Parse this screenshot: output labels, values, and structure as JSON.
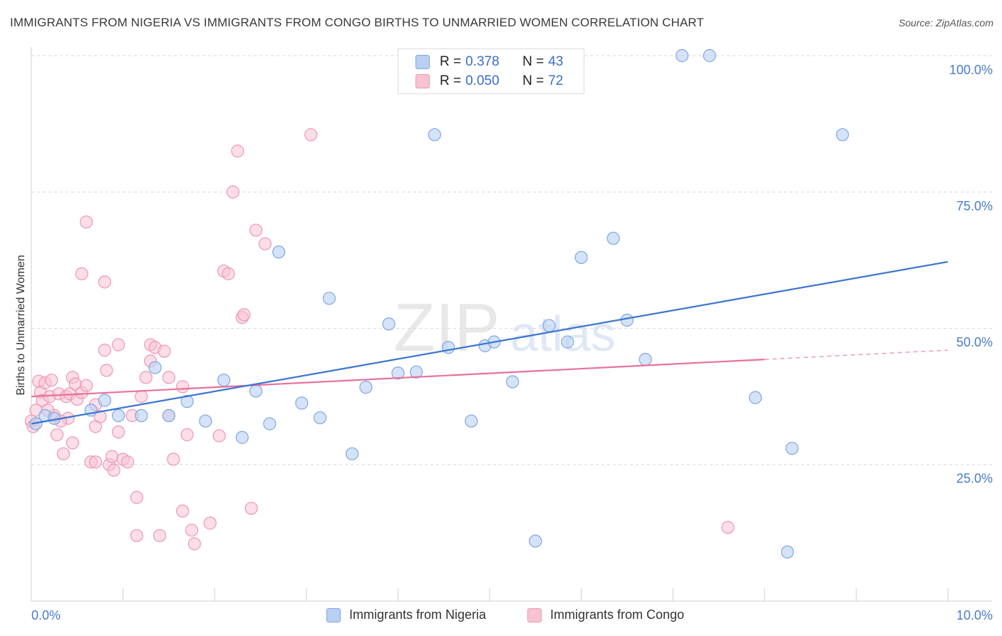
{
  "title": "IMMIGRANTS FROM NIGERIA VS IMMIGRANTS FROM CONGO BIRTHS TO UNMARRIED WOMEN CORRELATION CHART",
  "source": "Source: ZipAtlas.com",
  "watermark": {
    "zip": "ZIP",
    "atlas": "atlas"
  },
  "legend_top": [
    {
      "r_label": "R = ",
      "r_value": "0.378",
      "n_label": "N = ",
      "n_value": "43"
    },
    {
      "r_label": "R = ",
      "r_value": "0.050",
      "n_label": "N = ",
      "n_value": "72"
    }
  ],
  "legend_bottom": [
    "Immigrants from Nigeria",
    "Immigrants from Congo"
  ],
  "colors": {
    "nigeria_fill": "#b9d0f3",
    "nigeria_stroke": "#7fa6e3",
    "nigeria_line": "#3a76d0",
    "congo_fill": "#f7c3d3",
    "congo_stroke": "#ee97b3",
    "congo_line": "#e8719b",
    "grid": "#d9d9d9",
    "axis_label": "#4a7cc9"
  },
  "chart_data": {
    "type": "scatter",
    "title": "IMMIGRANTS FROM NIGERIA VS IMMIGRANTS FROM CONGO BIRTHS TO UNMARRIED WOMEN CORRELATION CHART",
    "xlabel": "",
    "ylabel": "Births to Unmarried Women",
    "xlim": [
      0,
      10
    ],
    "ylim": [
      0,
      100
    ],
    "x_tick_labels": [
      "0.0%",
      "10.0%"
    ],
    "y_tick_labels": [
      "100.0%",
      "75.0%",
      "50.0%",
      "25.0%"
    ],
    "y_gridlines": [
      25,
      50,
      75,
      100
    ],
    "series": [
      {
        "name": "Immigrants from Nigeria",
        "R": 0.378,
        "N": 43,
        "trend": {
          "x": [
            0.0,
            10.0
          ],
          "y": [
            32.5,
            62.2
          ]
        },
        "points": [
          [
            0.05,
            32.5
          ],
          [
            0.15,
            34.0
          ],
          [
            0.25,
            33.5
          ],
          [
            0.65,
            35.0
          ],
          [
            0.8,
            36.8
          ],
          [
            0.95,
            34.0
          ],
          [
            1.2,
            34.0
          ],
          [
            1.35,
            42.8
          ],
          [
            1.5,
            34.0
          ],
          [
            1.7,
            36.6
          ],
          [
            1.9,
            33.0
          ],
          [
            2.1,
            40.5
          ],
          [
            2.3,
            30.0
          ],
          [
            2.45,
            38.5
          ],
          [
            2.6,
            32.5
          ],
          [
            2.7,
            64.0
          ],
          [
            2.95,
            36.3
          ],
          [
            3.15,
            33.6
          ],
          [
            3.25,
            55.5
          ],
          [
            3.5,
            27.0
          ],
          [
            3.65,
            39.2
          ],
          [
            3.9,
            50.8
          ],
          [
            4.0,
            41.8
          ],
          [
            4.2,
            42.0
          ],
          [
            4.4,
            85.5
          ],
          [
            4.55,
            46.5
          ],
          [
            4.8,
            33.0
          ],
          [
            4.95,
            46.8
          ],
          [
            5.05,
            47.5
          ],
          [
            5.25,
            40.2
          ],
          [
            5.5,
            11.0
          ],
          [
            5.65,
            50.5
          ],
          [
            5.85,
            47.5
          ],
          [
            6.0,
            63.0
          ],
          [
            6.35,
            66.5
          ],
          [
            6.5,
            51.5
          ],
          [
            6.7,
            44.3
          ],
          [
            7.1,
            100.0
          ],
          [
            7.4,
            100.0
          ],
          [
            7.9,
            37.3
          ],
          [
            8.3,
            28.0
          ],
          [
            8.25,
            9.0
          ],
          [
            8.85,
            85.5
          ]
        ]
      },
      {
        "name": "Immigrants from Congo",
        "R": 0.05,
        "N": 72,
        "trend": {
          "x": [
            0.0,
            8.0
          ],
          "y": [
            37.5,
            44.3
          ]
        },
        "trend_extension": {
          "x": [
            8.0,
            10.0
          ],
          "y": [
            44.3,
            46.0
          ]
        },
        "points": [
          [
            0.0,
            33.0
          ],
          [
            0.05,
            35.0
          ],
          [
            0.08,
            40.3
          ],
          [
            0.1,
            38.3
          ],
          [
            0.12,
            36.8
          ],
          [
            0.15,
            40.0
          ],
          [
            0.2,
            37.5
          ],
          [
            0.22,
            40.5
          ],
          [
            0.25,
            34.0
          ],
          [
            0.28,
            30.5
          ],
          [
            0.3,
            38.0
          ],
          [
            0.35,
            27.0
          ],
          [
            0.38,
            37.5
          ],
          [
            0.4,
            33.5
          ],
          [
            0.42,
            38.0
          ],
          [
            0.45,
            29.0
          ],
          [
            0.45,
            41.0
          ],
          [
            0.48,
            39.8
          ],
          [
            0.5,
            37.0
          ],
          [
            0.55,
            38.2
          ],
          [
            0.6,
            39.5
          ],
          [
            0.65,
            25.5
          ],
          [
            0.7,
            25.5
          ],
          [
            0.7,
            32.0
          ],
          [
            0.7,
            36.0
          ],
          [
            0.75,
            33.8
          ],
          [
            0.8,
            46.0
          ],
          [
            0.82,
            42.3
          ],
          [
            0.85,
            25.0
          ],
          [
            0.88,
            26.5
          ],
          [
            0.9,
            24.0
          ],
          [
            0.95,
            31.0
          ],
          [
            0.95,
            47.0
          ],
          [
            1.0,
            26.0
          ],
          [
            1.05,
            25.5
          ],
          [
            1.1,
            34.0
          ],
          [
            1.15,
            19.0
          ],
          [
            1.15,
            12.0
          ],
          [
            1.2,
            37.5
          ],
          [
            1.25,
            41.0
          ],
          [
            1.3,
            47.0
          ],
          [
            1.3,
            44.0
          ],
          [
            1.35,
            46.5
          ],
          [
            1.4,
            12.0
          ],
          [
            1.45,
            45.8
          ],
          [
            1.5,
            34.0
          ],
          [
            1.5,
            41.0
          ],
          [
            1.55,
            26.0
          ],
          [
            1.65,
            39.3
          ],
          [
            1.65,
            16.5
          ],
          [
            1.7,
            30.5
          ],
          [
            1.75,
            13.0
          ],
          [
            1.78,
            10.5
          ],
          [
            1.95,
            14.3
          ],
          [
            2.05,
            30.3
          ],
          [
            2.1,
            60.5
          ],
          [
            2.15,
            60.0
          ],
          [
            2.2,
            75.0
          ],
          [
            2.25,
            82.5
          ],
          [
            2.3,
            52.0
          ],
          [
            2.32,
            52.5
          ],
          [
            2.4,
            17.0
          ],
          [
            2.45,
            68.0
          ],
          [
            2.55,
            65.5
          ],
          [
            0.55,
            60.0
          ],
          [
            0.6,
            69.5
          ],
          [
            0.8,
            58.5
          ],
          [
            3.05,
            85.5
          ],
          [
            7.6,
            13.5
          ],
          [
            0.02,
            32.0
          ],
          [
            0.18,
            35.0
          ],
          [
            0.32,
            33.0
          ]
        ]
      }
    ]
  }
}
